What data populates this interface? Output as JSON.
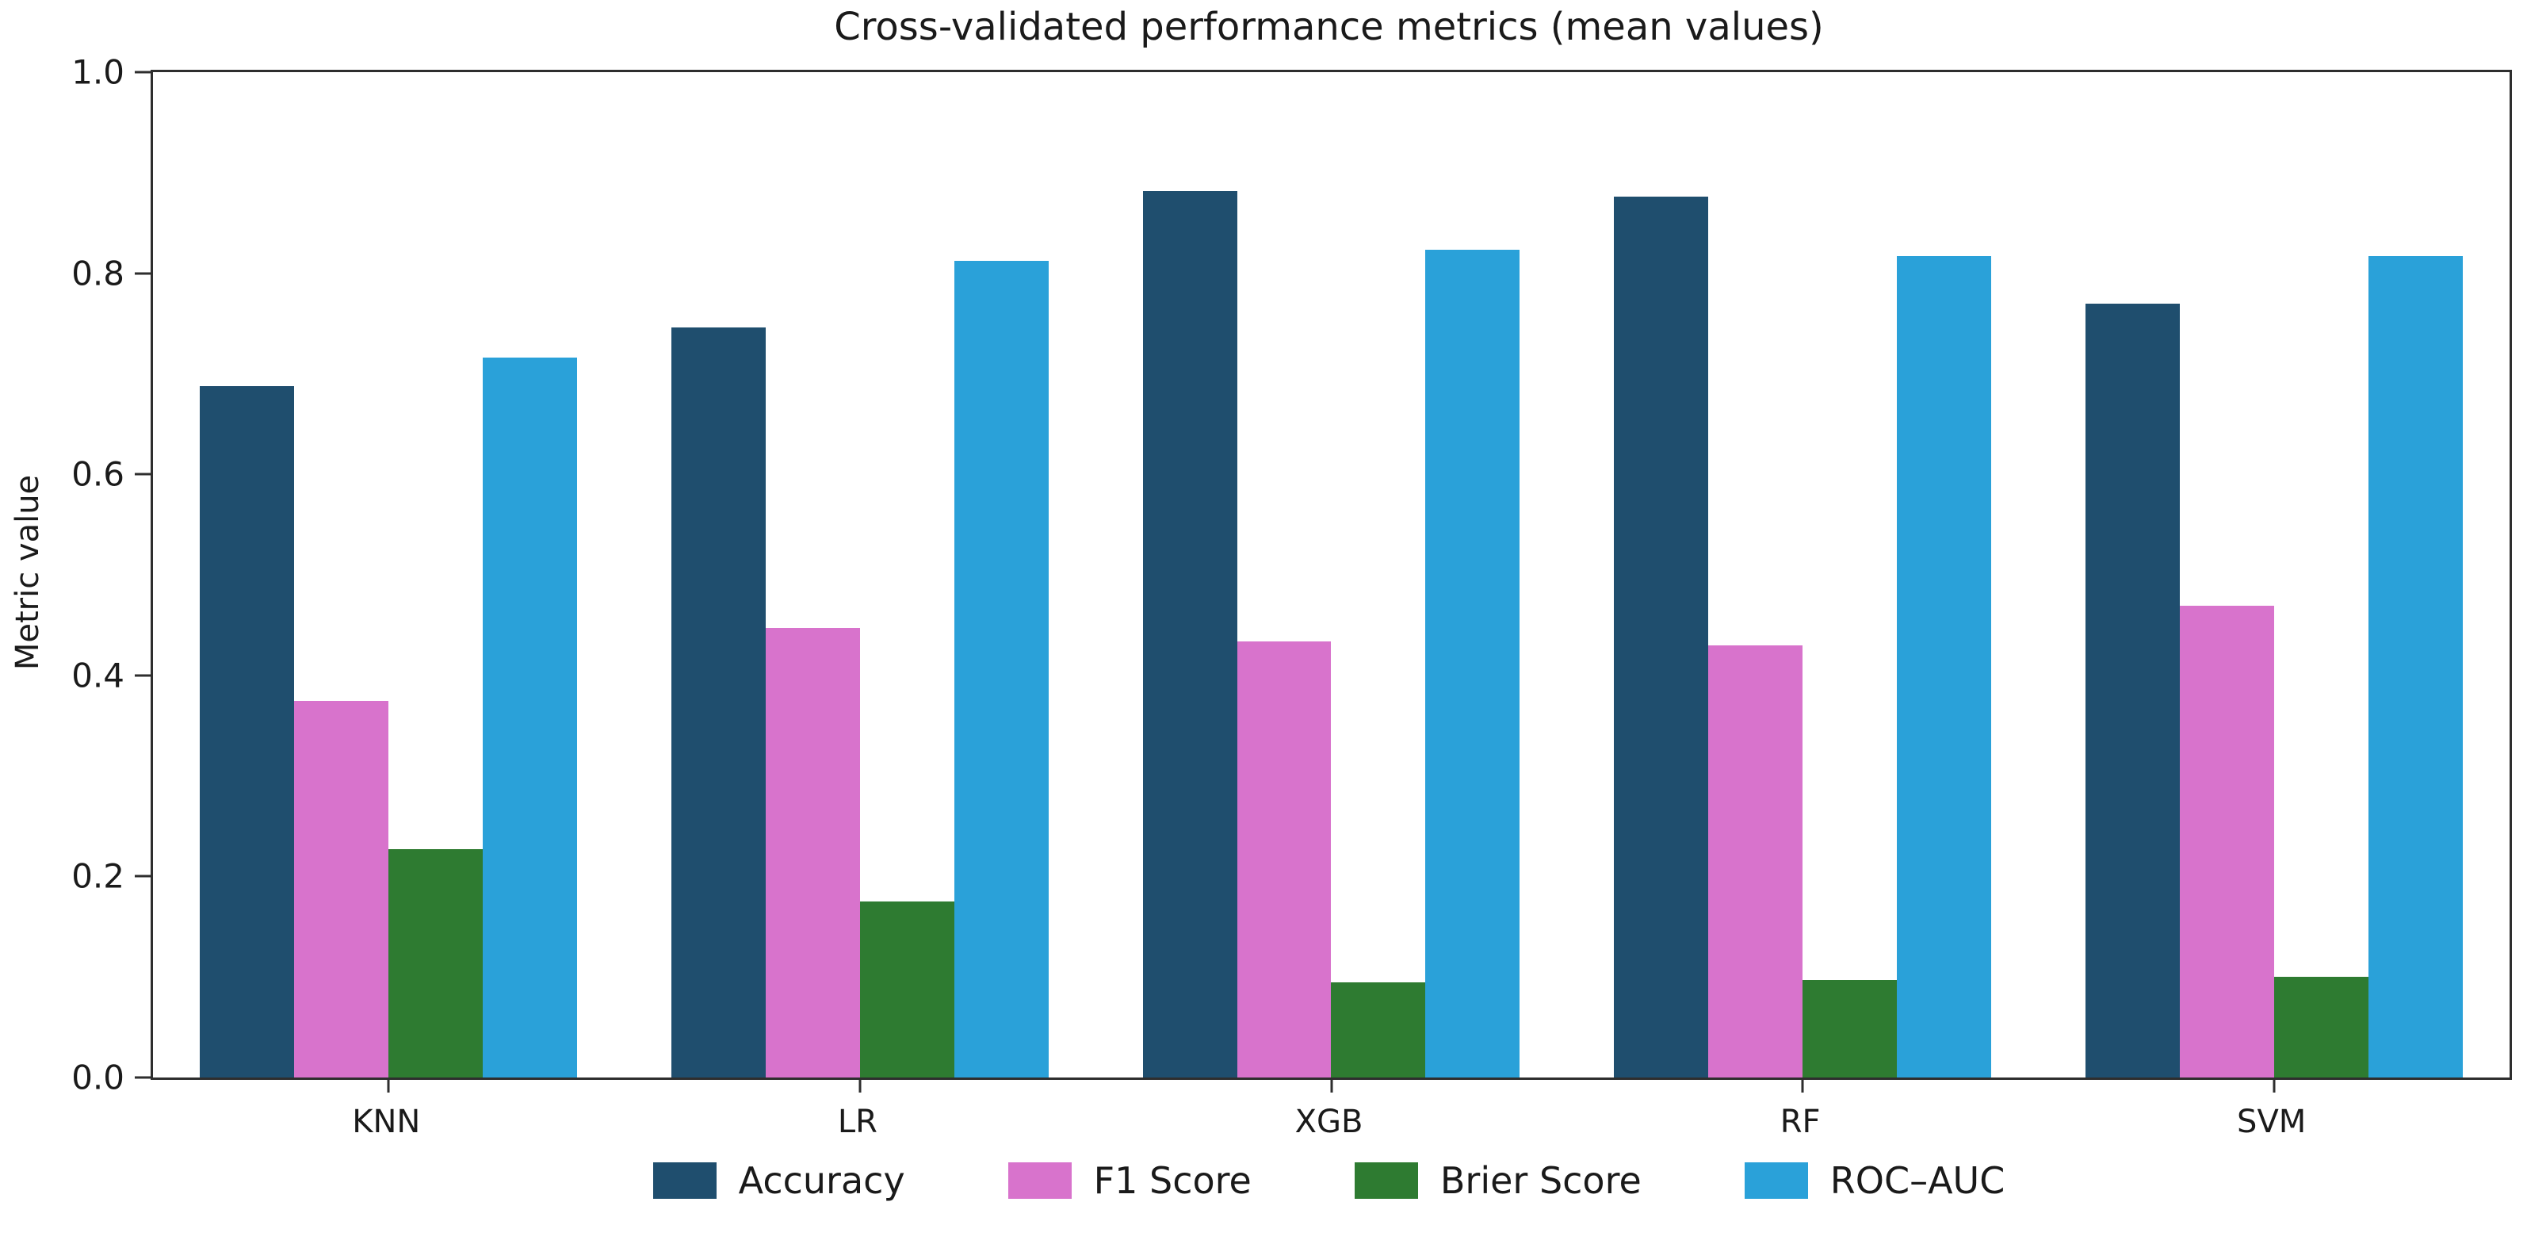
{
  "chart_data": {
    "type": "bar",
    "title": "Cross-validated performance metrics (mean values)",
    "xlabel": "",
    "ylabel": "Metric value",
    "ylim": [
      0.0,
      1.0
    ],
    "yticks": [
      "0.0",
      "0.2",
      "0.4",
      "0.6",
      "0.8",
      "1.0"
    ],
    "grid": false,
    "legend_position": "bottom-center",
    "categories": [
      "KNN",
      "LR",
      "XGB",
      "RF",
      "SVM"
    ],
    "series": [
      {
        "name": "Accuracy",
        "color": "#1f4e6e",
        "values": [
          0.688,
          0.746,
          0.882,
          0.876,
          0.77
        ]
      },
      {
        "name": "F1 Score",
        "color": "#d873cc",
        "values": [
          0.375,
          0.447,
          0.434,
          0.43,
          0.469
        ]
      },
      {
        "name": "Brier Score",
        "color": "#2e7b31",
        "values": [
          0.227,
          0.175,
          0.095,
          0.097,
          0.1
        ]
      },
      {
        "name": "ROC–AUC",
        "color": "#2aa1d9",
        "values": [
          0.716,
          0.812,
          0.823,
          0.817,
          0.817
        ]
      }
    ],
    "colors": {
      "axis": "#2e2e2e",
      "text": "#1a1a1a",
      "background": "#ffffff"
    }
  }
}
